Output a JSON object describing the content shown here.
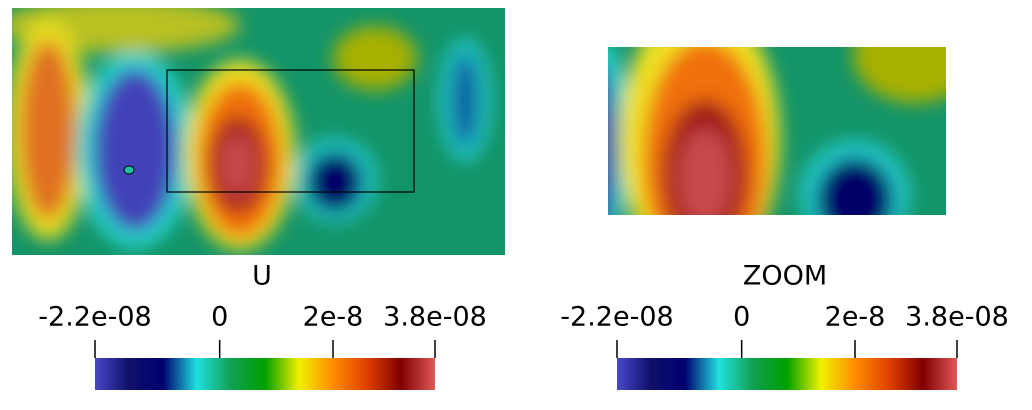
{
  "chart_data": [
    {
      "type": "heatmap",
      "title": "U",
      "clim": [
        -2.2e-08,
        3.8e-08
      ],
      "cticks": [
        {
          "value": -2.2e-08,
          "label": "-2.2e-08"
        },
        0,
        2e-08,
        {
          "value": 3.8e-08,
          "label": "3.8e-08"
        }
      ],
      "colors": [
        "#4848c8",
        "#10106a",
        "#000070",
        "#20e0e0",
        "#10a050",
        "#00a000",
        "#f0f000",
        "#ff8c00",
        "#e04000",
        "#800000",
        "#e05858"
      ]
    },
    {
      "type": "heatmap",
      "title": "ZOOM",
      "clim": [
        -2.2e-08,
        3.8e-08
      ],
      "cticks": [
        {
          "value": -2.2e-08,
          "label": "-2.2e-08"
        },
        0,
        2e-08,
        {
          "value": 3.8e-08,
          "label": "3.8e-08"
        }
      ],
      "colors": [
        "#4848c8",
        "#10106a",
        "#000070",
        "#20e0e0",
        "#10a050",
        "#00a000",
        "#f0f000",
        "#ff8c00",
        "#e04000",
        "#800000",
        "#e05858"
      ]
    }
  ]
}
